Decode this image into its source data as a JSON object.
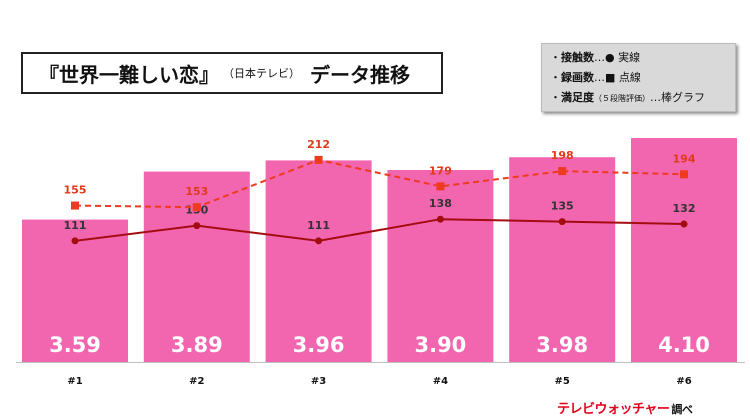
{
  "title": {
    "main": "『世界一難しい恋』",
    "sub": "（日本テレビ）",
    "end": "データ推移"
  },
  "legend": {
    "row1": {
      "key": "接触数",
      "desc": "…● 実線"
    },
    "row2": {
      "key": "録画数",
      "desc": "…■ 点線"
    },
    "row3": {
      "key": "満足度",
      "detail": "（５段階評価）",
      "desc": "…棒グラフ"
    }
  },
  "brand": {
    "name": "テレビウォッチャー",
    "suffix": "調べ"
  },
  "colors": {
    "bar": "#f266b0",
    "solid_line": "#a30d10",
    "dashed_line": "#ee3a1f",
    "dashed_label": "#e03a1a",
    "solid_label": "#333333"
  },
  "chart_data": {
    "type": "bar",
    "categories": [
      "#1",
      "#2",
      "#3",
      "#4",
      "#5",
      "#6"
    ],
    "bars": {
      "values": [
        3.59,
        3.89,
        3.96,
        3.9,
        3.98,
        4.1
      ],
      "labels": [
        "3.59",
        "3.89",
        "3.96",
        "3.90",
        "3.98",
        "4.10"
      ]
    },
    "series": [
      {
        "name": "接触数",
        "style": "solid",
        "marker": "circle",
        "values": [
          111,
          130,
          111,
          138,
          135,
          132
        ]
      },
      {
        "name": "録画数",
        "style": "dashed",
        "marker": "square",
        "values": [
          155,
          153,
          212,
          179,
          198,
          194
        ]
      }
    ],
    "grid": false
  }
}
